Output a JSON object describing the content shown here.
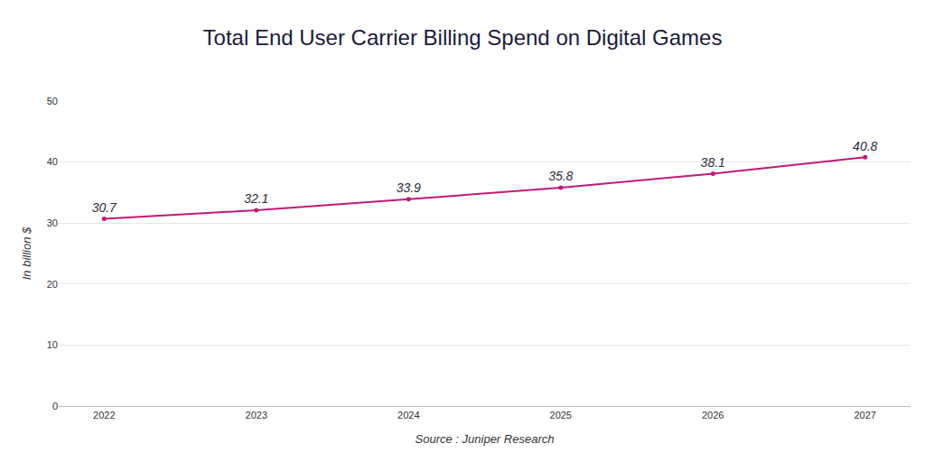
{
  "chart_data": {
    "type": "line",
    "title": "Total End User Carrier Billing Spend on Digital Games",
    "x_label": "Source : Juniper Research",
    "y_label": "In billion $",
    "categories": [
      "2022",
      "2023",
      "2024",
      "2025",
      "2026",
      "2027"
    ],
    "values": [
      30.7,
      32.1,
      33.9,
      35.8,
      38.1,
      40.8
    ],
    "color": "#c2187a",
    "marker": "circle",
    "ylim": [
      0,
      50
    ],
    "yticks": [
      0,
      10,
      20,
      30,
      40,
      50
    ],
    "grid": true,
    "data_labels": true
  }
}
